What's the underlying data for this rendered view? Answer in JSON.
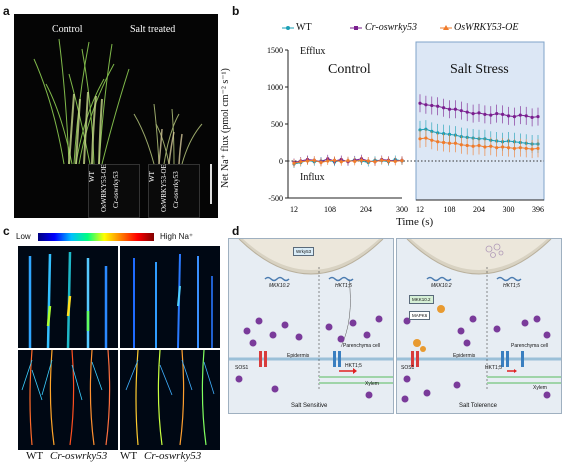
{
  "panels": {
    "a": {
      "letter": "a",
      "control_label": "Control",
      "salt_label": "Salt treated",
      "pot_labels": [
        "WT",
        "OsWRKY53-OE",
        "Cr-oswrky53",
        "WT",
        "OsWRKY53-OE",
        "Cr-oswrky53"
      ]
    },
    "b": {
      "letter": "b",
      "ylabel": "Net Na⁺ flux (pmol cm⁻² s⁻¹)",
      "xlabel": "Time (s)",
      "efflux": "Efflux",
      "influx": "Influx",
      "control_label": "Control",
      "stress_label": "Salt Stress",
      "legend": [
        "WT",
        "Cr-oswrky53",
        "OsWRKY53-OE"
      ],
      "yticks": [
        "1500",
        "1000",
        "500",
        "0",
        "-500"
      ],
      "xticks_left": [
        "12",
        "108",
        "204",
        "300"
      ],
      "xticks_right": [
        "12",
        "108",
        "204",
        "300",
        "396"
      ]
    },
    "c": {
      "letter": "c",
      "low": "Low",
      "high": "High Na⁺",
      "bottom_labels": [
        "WT",
        "Cr-oswrky53",
        "WT",
        "Cr-oswrky53"
      ]
    },
    "d": {
      "letter": "d",
      "left_caption": "Salt Sensitive",
      "right_caption": "Salt Tolerence",
      "wrky": "Wrky53",
      "mkk": "MKK10.2",
      "hkt": "HKT1;5",
      "sos1": "SOS1",
      "hkt15": "HKT1;5",
      "epidermis": "Epidermis",
      "parenchyma": "Parenchyma cell",
      "xylem": "Xylem",
      "mapk6": "MAPK6",
      "mkk_box": "MKK10.2"
    }
  },
  "chart_data": {
    "type": "line",
    "title": "",
    "xlabel": "Time (s)",
    "ylabel": "Net Na⁺ flux (pmol cm⁻² s⁻¹)",
    "ylim": [
      -500,
      1500
    ],
    "segments": [
      "Control",
      "Salt Stress"
    ],
    "series": [
      {
        "name": "WT",
        "color": "#1a9fb5",
        "control": [
          -40,
          -20,
          10,
          -10,
          0,
          20,
          -15,
          10,
          -5,
          15,
          0,
          -20,
          10,
          5,
          -10,
          20,
          0
        ],
        "stress": [
          420,
          430,
          400,
          380,
          370,
          360,
          350,
          330,
          320,
          310,
          300,
          300,
          280,
          270,
          260,
          270,
          260,
          250,
          240,
          230,
          230
        ]
      },
      {
        "name": "Cr-oswrky53",
        "color": "#7a1f8f",
        "control": [
          -20,
          0,
          20,
          10,
          -10,
          30,
          0,
          20,
          -10,
          10,
          30,
          0,
          -10,
          20,
          10,
          0,
          10
        ],
        "stress": [
          780,
          760,
          750,
          740,
          720,
          700,
          700,
          680,
          660,
          640,
          650,
          630,
          620,
          640,
          630,
          610,
          600,
          620,
          610,
          590,
          600
        ]
      },
      {
        "name": "OsWRKY53-OE",
        "color": "#f07c2c",
        "control": [
          -30,
          -10,
          0,
          10,
          -20,
          0,
          10,
          -10,
          5,
          -5,
          10,
          0,
          -10,
          10,
          0,
          -5,
          5
        ],
        "stress": [
          300,
          310,
          280,
          260,
          250,
          240,
          240,
          220,
          210,
          200,
          210,
          190,
          200,
          180,
          190,
          180,
          170,
          180,
          170,
          160,
          170
        ]
      }
    ]
  }
}
